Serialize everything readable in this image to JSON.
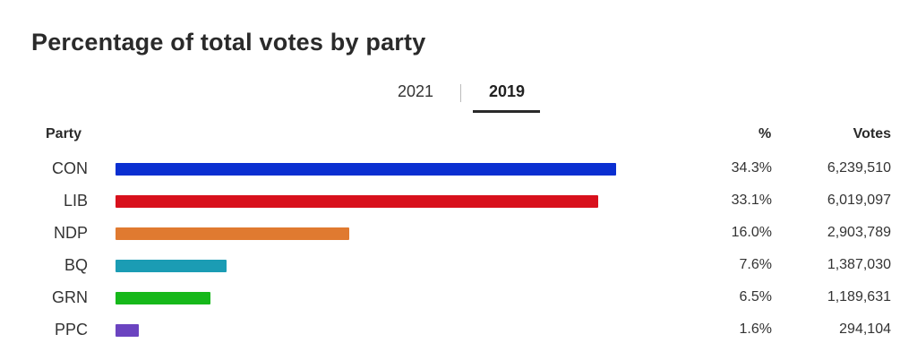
{
  "title": "Percentage of total votes by party",
  "tabs": [
    {
      "label": "2021",
      "active": false
    },
    {
      "label": "2019",
      "active": true
    }
  ],
  "headers": {
    "party": "Party",
    "pct": "%",
    "votes": "Votes"
  },
  "chart_data": {
    "type": "bar",
    "orientation": "horizontal",
    "categories": [
      "CON",
      "LIB",
      "NDP",
      "BQ",
      "GRN",
      "PPC"
    ],
    "values": [
      34.3,
      33.1,
      16.0,
      7.6,
      6.5,
      1.6
    ],
    "pct_labels": [
      "34.3%",
      "33.1%",
      "16.0%",
      "7.6%",
      "6.5%",
      "1.6%"
    ],
    "votes": [
      "6,239,510",
      "6,019,097",
      "2,903,789",
      "1,387,030",
      "1,189,631",
      "294,104"
    ],
    "colors": [
      "#0a2fd1",
      "#d8101c",
      "#e07a30",
      "#1b9cb4",
      "#16b81a",
      "#6b44c0"
    ],
    "title": "Percentage of total votes by party",
    "xlabel": "",
    "ylabel": ""
  }
}
